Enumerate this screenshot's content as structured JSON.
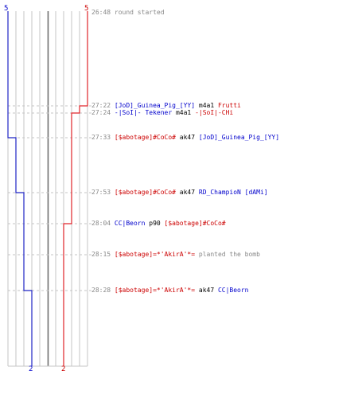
{
  "colors": {
    "ct": "#1f24c4",
    "t": "#e0242a",
    "grid": "#c4c4c4",
    "center": "#707070",
    "dash": "#c4c4c4",
    "time": "#888888"
  },
  "teams": {
    "ct_start": "5",
    "t_start": "5",
    "ct_end": "2",
    "t_end": "2"
  },
  "events": [
    {
      "time": "26:48",
      "parts": [
        {
          "text": "round started",
          "color": "info"
        }
      ]
    },
    {
      "time": "27:22",
      "parts": [
        {
          "text": "[JoD]_Guinea_Pig_[YY]",
          "color": "blue"
        },
        {
          "text": " m4a1 ",
          "color": "black"
        },
        {
          "text": "Frutti",
          "color": "red"
        }
      ]
    },
    {
      "time": "27:24",
      "parts": [
        {
          "text": "-|SoI|- Tekener",
          "color": "blue"
        },
        {
          "text": " m4a1 ",
          "color": "black"
        },
        {
          "text": "-|SoI|-CHi",
          "color": "red"
        }
      ]
    },
    {
      "time": "27:33",
      "parts": [
        {
          "text": "[$abotage]#CoCo#",
          "color": "red"
        },
        {
          "text": " ak47 ",
          "color": "black"
        },
        {
          "text": "[JoD]_Guinea_Pig_[YY]",
          "color": "blue"
        }
      ]
    },
    {
      "time": "27:53",
      "parts": [
        {
          "text": "[$abotage]#CoCo#",
          "color": "red"
        },
        {
          "text": " ak47 ",
          "color": "black"
        },
        {
          "text": "RD_ChampioN [dAMi]",
          "color": "blue"
        }
      ]
    },
    {
      "time": "28:04",
      "parts": [
        {
          "text": "CC|Beorn",
          "color": "blue"
        },
        {
          "text": " p90 ",
          "color": "black"
        },
        {
          "text": "[$abotage]#CoCo#",
          "color": "red"
        }
      ]
    },
    {
      "time": "28:15",
      "parts": [
        {
          "text": "[$abotage]=*'AkirA'*=",
          "color": "red"
        },
        {
          "text": " planted the bomb",
          "color": "info"
        }
      ]
    },
    {
      "time": "28:28",
      "parts": [
        {
          "text": "[$abotage]=*'AkirA'*=",
          "color": "red"
        },
        {
          "text": " ak47 ",
          "color": "black"
        },
        {
          "text": "CC|Beorn",
          "color": "blue"
        }
      ]
    }
  ]
}
